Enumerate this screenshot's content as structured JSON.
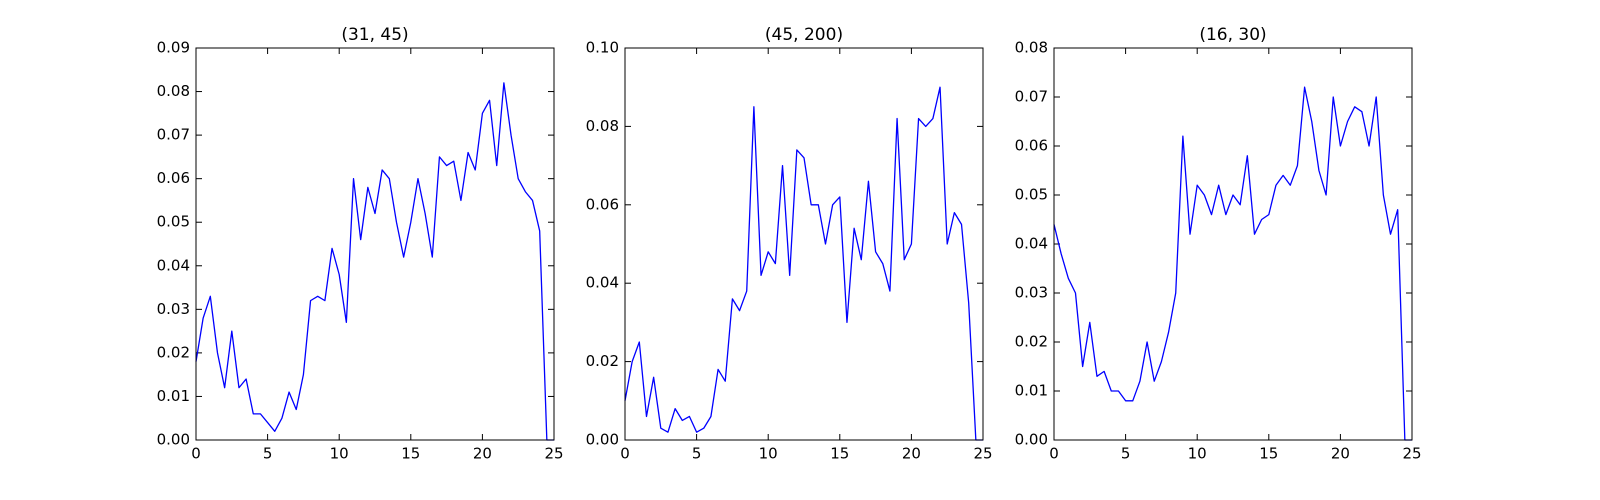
{
  "chart_data": [
    {
      "type": "line",
      "title": "(31, 45)",
      "x": [
        0,
        0.5,
        1,
        1.5,
        2,
        2.5,
        3,
        3.5,
        4,
        4.5,
        5,
        5.5,
        6,
        6.5,
        7,
        7.5,
        8,
        8.5,
        9,
        9.5,
        10,
        10.5,
        11,
        11.5,
        12,
        12.5,
        13,
        13.5,
        14,
        14.5,
        15,
        15.5,
        16,
        16.5,
        17,
        17.5,
        18,
        18.5,
        19,
        19.5,
        20,
        20.5,
        21,
        21.5,
        22,
        22.5,
        23,
        23.5,
        24,
        24.5,
        25
      ],
      "series": [
        {
          "color": "#0000ff",
          "values": [
            0.018,
            0.028,
            0.033,
            0.02,
            0.012,
            0.025,
            0.012,
            0.014,
            0.006,
            0.006,
            0.004,
            0.002,
            0.005,
            0.011,
            0.007,
            0.015,
            0.032,
            0.033,
            0.032,
            0.044,
            0.038,
            0.027,
            0.06,
            0.046,
            0.058,
            0.052,
            0.062,
            0.06,
            0.05,
            0.042,
            0.05,
            0.06,
            0.052,
            0.042,
            0.065,
            0.063,
            0.064,
            0.055,
            0.066,
            0.062,
            0.075,
            0.078,
            0.063,
            0.082,
            0.07,
            0.06,
            0.057,
            0.055,
            0.048,
            0.0,
            0.0
          ]
        }
      ],
      "xlim": [
        0,
        25
      ],
      "xticks": [
        0,
        5,
        10,
        15,
        20,
        25
      ],
      "ylim": [
        0,
        0.09
      ],
      "yticks": [
        {
          "value": 0,
          "label": "0.00"
        },
        0.01,
        0.02,
        0.03,
        0.04,
        0.05,
        0.06,
        0.07,
        0.08,
        0.09
      ]
    },
    {
      "type": "line",
      "title": "(45, 200)",
      "x": [
        0,
        0.5,
        1,
        1.5,
        2,
        2.5,
        3,
        3.5,
        4,
        4.5,
        5,
        5.5,
        6,
        6.5,
        7,
        7.5,
        8,
        8.5,
        9,
        9.5,
        10,
        10.5,
        11,
        11.5,
        12,
        12.5,
        13,
        13.5,
        14,
        14.5,
        15,
        15.5,
        16,
        16.5,
        17,
        17.5,
        18,
        18.5,
        19,
        19.5,
        20,
        20.5,
        21,
        21.5,
        22,
        22.5,
        23,
        23.5,
        24,
        24.5,
        25
      ],
      "series": [
        {
          "color": "#0000ff",
          "values": [
            0.01,
            0.02,
            0.025,
            0.006,
            0.016,
            0.003,
            0.002,
            0.008,
            0.005,
            0.006,
            0.002,
            0.003,
            0.006,
            0.018,
            0.015,
            0.036,
            0.033,
            0.038,
            0.085,
            0.042,
            0.048,
            0.045,
            0.07,
            0.042,
            0.074,
            0.072,
            0.06,
            0.06,
            0.05,
            0.06,
            0.062,
            0.03,
            0.054,
            0.046,
            0.066,
            0.048,
            0.045,
            0.038,
            0.082,
            0.046,
            0.05,
            0.082,
            0.08,
            0.082,
            0.09,
            0.05,
            0.058,
            0.055,
            0.035,
            0.0,
            0.0
          ]
        }
      ],
      "xlim": [
        0,
        25
      ],
      "xticks": [
        0,
        5,
        10,
        15,
        20,
        25
      ],
      "ylim": [
        0,
        0.1
      ],
      "yticks": [
        {
          "value": 0,
          "label": "0.00"
        },
        0.02,
        0.04,
        0.06,
        0.08,
        {
          "value": 0.1,
          "label": "0.10"
        }
      ]
    },
    {
      "type": "line",
      "title": "(16, 30)",
      "x": [
        0,
        0.5,
        1,
        1.5,
        2,
        2.5,
        3,
        3.5,
        4,
        4.5,
        5,
        5.5,
        6,
        6.5,
        7,
        7.5,
        8,
        8.5,
        9,
        9.5,
        10,
        10.5,
        11,
        11.5,
        12,
        12.5,
        13,
        13.5,
        14,
        14.5,
        15,
        15.5,
        16,
        16.5,
        17,
        17.5,
        18,
        18.5,
        19,
        19.5,
        20,
        20.5,
        21,
        21.5,
        22,
        22.5,
        23,
        23.5,
        24,
        24.5,
        25
      ],
      "series": [
        {
          "color": "#0000ff",
          "values": [
            0.044,
            0.038,
            0.033,
            0.03,
            0.015,
            0.024,
            0.013,
            0.014,
            0.01,
            0.01,
            0.008,
            0.008,
            0.012,
            0.02,
            0.012,
            0.016,
            0.022,
            0.03,
            0.062,
            0.042,
            0.052,
            0.05,
            0.046,
            0.052,
            0.046,
            0.05,
            0.048,
            0.058,
            0.042,
            0.045,
            0.046,
            0.052,
            0.054,
            0.052,
            0.056,
            0.072,
            0.065,
            0.055,
            0.05,
            0.07,
            0.06,
            0.065,
            0.068,
            0.067,
            0.06,
            0.07,
            0.05,
            0.042,
            0.047,
            0.0,
            0.0
          ]
        }
      ],
      "xlim": [
        0,
        25
      ],
      "xticks": [
        0,
        5,
        10,
        15,
        20,
        25
      ],
      "ylim": [
        0,
        0.08
      ],
      "yticks": [
        {
          "value": 0,
          "label": "0.00"
        },
        0.01,
        0.02,
        0.03,
        0.04,
        0.05,
        0.06,
        0.07,
        0.08
      ]
    }
  ]
}
